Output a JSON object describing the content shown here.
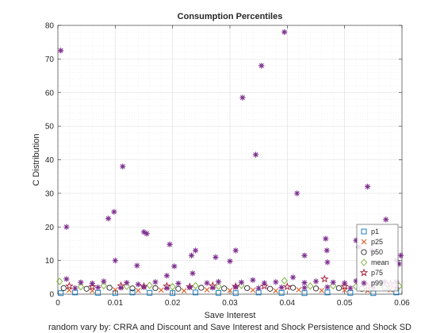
{
  "chart_data": {
    "type": "scatter",
    "title": "Consumption Percentiles",
    "xlabel": "Save Interest",
    "ylabel": "C Distribution",
    "caption": "random vary by: CRRA and Discount and Save Interest and Shock Persistence and Shock SD",
    "xlim": [
      0,
      0.06
    ],
    "ylim": [
      0,
      80
    ],
    "xticks": [
      0,
      0.01,
      0.02,
      0.03,
      0.04,
      0.05,
      0.06
    ],
    "xtick_labels": [
      "0",
      "0.01",
      "0.02",
      "0.03",
      "0.04",
      "0.05",
      "0.06"
    ],
    "yticks": [
      0,
      10,
      20,
      30,
      40,
      50,
      60,
      70,
      80
    ],
    "ytick_labels": [
      "0",
      "10",
      "20",
      "30",
      "40",
      "50",
      "60",
      "70",
      "80"
    ],
    "grid": true,
    "legend_position": "bottom-right",
    "series": [
      {
        "name": "p1",
        "marker": "square",
        "color": "#0072BD",
        "points": [
          [
            0.0005,
            0.3
          ],
          [
            0.003,
            0.5
          ],
          [
            0.007,
            0.4
          ],
          [
            0.01,
            0.3
          ],
          [
            0.013,
            0.5
          ],
          [
            0.016,
            0.4
          ],
          [
            0.02,
            0.3
          ],
          [
            0.024,
            0.5
          ],
          [
            0.028,
            0.4
          ],
          [
            0.031,
            0.3
          ],
          [
            0.035,
            0.5
          ],
          [
            0.039,
            0.4
          ],
          [
            0.043,
            0.3
          ],
          [
            0.047,
            0.5
          ],
          [
            0.051,
            0.4
          ],
          [
            0.055,
            0.3
          ],
          [
            0.059,
            0.5
          ]
        ]
      },
      {
        "name": "p25",
        "marker": "x",
        "color": "#D95319",
        "points": [
          [
            0.002,
            1.2
          ],
          [
            0.006,
            1.0
          ],
          [
            0.01,
            1.3
          ],
          [
            0.014,
            1.1
          ],
          [
            0.018,
            1.2
          ],
          [
            0.022,
            1.0
          ],
          [
            0.026,
            1.3
          ],
          [
            0.03,
            1.1
          ],
          [
            0.034,
            1.2
          ],
          [
            0.038,
            1.0
          ],
          [
            0.042,
            1.3
          ],
          [
            0.046,
            1.1
          ],
          [
            0.05,
            1.2
          ],
          [
            0.054,
            1.0
          ],
          [
            0.058,
            1.3
          ]
        ]
      },
      {
        "name": "p50",
        "marker": "circle",
        "color": "#262626",
        "points": [
          [
            0.001,
            1.8
          ],
          [
            0.005,
            1.6
          ],
          [
            0.009,
            1.9
          ],
          [
            0.013,
            1.7
          ],
          [
            0.017,
            1.8
          ],
          [
            0.021,
            1.6
          ],
          [
            0.025,
            1.9
          ],
          [
            0.029,
            1.7
          ],
          [
            0.033,
            1.8
          ],
          [
            0.037,
            1.6
          ],
          [
            0.041,
            1.9
          ],
          [
            0.045,
            1.7
          ],
          [
            0.049,
            1.8
          ],
          [
            0.053,
            1.6
          ],
          [
            0.057,
            1.9
          ]
        ]
      },
      {
        "name": "mean",
        "marker": "diamond",
        "color": "#77AC30",
        "points": [
          [
            0.0003,
            3.8
          ],
          [
            0.004,
            2.2
          ],
          [
            0.008,
            2.5
          ],
          [
            0.012,
            2.3
          ],
          [
            0.016,
            2.6
          ],
          [
            0.02,
            2.2
          ],
          [
            0.024,
            2.5
          ],
          [
            0.028,
            2.3
          ],
          [
            0.032,
            2.6
          ],
          [
            0.0395,
            4.0
          ],
          [
            0.044,
            2.4
          ],
          [
            0.048,
            2.5
          ],
          [
            0.052,
            2.3
          ],
          [
            0.056,
            2.6
          ],
          [
            0.0595,
            2.4
          ]
        ]
      },
      {
        "name": "p75",
        "marker": "pentagram",
        "color": "#A2142F",
        "points": [
          [
            0.002,
            2.4
          ],
          [
            0.006,
            2.2
          ],
          [
            0.011,
            2.5
          ],
          [
            0.015,
            2.3
          ],
          [
            0.019,
            2.4
          ],
          [
            0.023,
            2.2
          ],
          [
            0.027,
            2.5
          ],
          [
            0.031,
            2.3
          ],
          [
            0.036,
            2.4
          ],
          [
            0.04,
            2.2
          ],
          [
            0.0465,
            4.5
          ],
          [
            0.05,
            2.3
          ],
          [
            0.054,
            2.4
          ],
          [
            0.058,
            3.0
          ]
        ]
      },
      {
        "name": "p99",
        "marker": "asterisk",
        "color": "#7E2F8E",
        "points": [
          [
            0.0005,
            72.5
          ],
          [
            0.0015,
            20
          ],
          [
            0.0088,
            22.5
          ],
          [
            0.0098,
            24.5
          ],
          [
            0.01,
            10
          ],
          [
            0.0113,
            38
          ],
          [
            0.0138,
            8.5
          ],
          [
            0.015,
            18.5
          ],
          [
            0.0155,
            18
          ],
          [
            0.0195,
            14.8
          ],
          [
            0.0203,
            8.3
          ],
          [
            0.0233,
            11.5
          ],
          [
            0.024,
            13
          ],
          [
            0.0275,
            11
          ],
          [
            0.03,
            9.8
          ],
          [
            0.031,
            13
          ],
          [
            0.0322,
            58.5
          ],
          [
            0.0345,
            41.5
          ],
          [
            0.0355,
            68
          ],
          [
            0.0395,
            78
          ],
          [
            0.0417,
            30
          ],
          [
            0.043,
            11.5
          ],
          [
            0.0467,
            16.5
          ],
          [
            0.0469,
            13
          ],
          [
            0.047,
            9.5
          ],
          [
            0.052,
            16
          ],
          [
            0.0525,
            14
          ],
          [
            0.054,
            32
          ],
          [
            0.0548,
            13
          ],
          [
            0.0572,
            22.2
          ],
          [
            0.059,
            10
          ],
          [
            0.0598,
            11.5
          ],
          [
            0.0595,
            9
          ],
          [
            0.0015,
            4.5
          ],
          [
            0.004,
            3.5
          ],
          [
            0.006,
            3.2
          ],
          [
            0.008,
            3.8
          ],
          [
            0.012,
            3.4
          ],
          [
            0.014,
            2.9
          ],
          [
            0.017,
            3.6
          ],
          [
            0.019,
            5.5
          ],
          [
            0.021,
            3.2
          ],
          [
            0.0235,
            6.2
          ],
          [
            0.026,
            3.3
          ],
          [
            0.028,
            3.7
          ],
          [
            0.032,
            3.5
          ],
          [
            0.034,
            4.2
          ],
          [
            0.036,
            3.3
          ],
          [
            0.038,
            3.6
          ],
          [
            0.041,
            5.0
          ],
          [
            0.043,
            3.4
          ],
          [
            0.045,
            3.8
          ],
          [
            0.048,
            3.5
          ],
          [
            0.05,
            3.3
          ],
          [
            0.052,
            3.9
          ],
          [
            0.055,
            3.4
          ],
          [
            0.057,
            3.7
          ],
          [
            0.059,
            3.6
          ],
          [
            0.003,
            1.8
          ],
          [
            0.007,
            2.0
          ],
          [
            0.011,
            1.9
          ],
          [
            0.015,
            2.1
          ],
          [
            0.019,
            1.8
          ],
          [
            0.023,
            2.0
          ],
          [
            0.027,
            1.9
          ],
          [
            0.031,
            2.1
          ],
          [
            0.035,
            1.8
          ],
          [
            0.039,
            2.0
          ],
          [
            0.043,
            1.9
          ],
          [
            0.047,
            2.1
          ],
          [
            0.051,
            1.8
          ],
          [
            0.055,
            2.0
          ],
          [
            0.059,
            1.9
          ]
        ]
      }
    ]
  }
}
